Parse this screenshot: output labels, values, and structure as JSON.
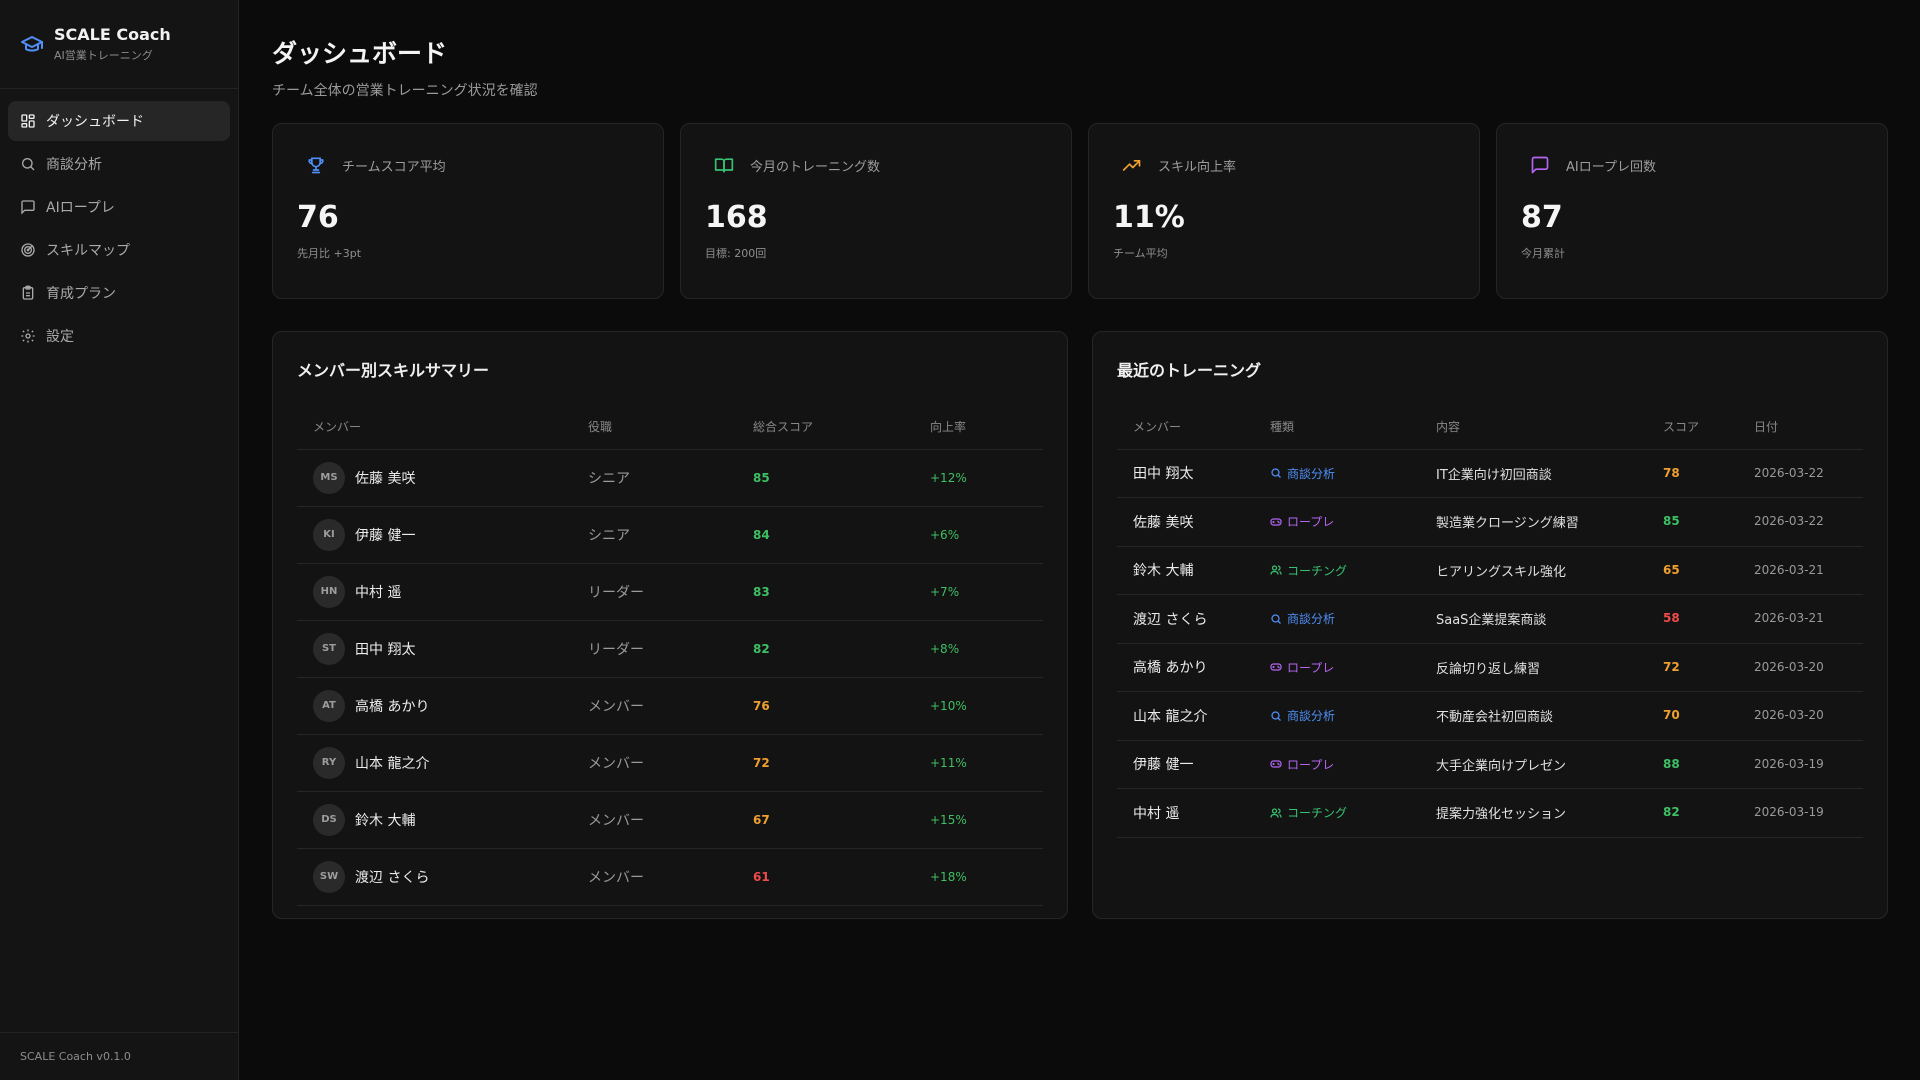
{
  "brand": {
    "title": "SCALE Coach",
    "subtitle": "AI営業トレーニング"
  },
  "nav": [
    {
      "label": "ダッシュボード",
      "icon": "dashboard-icon",
      "active": true
    },
    {
      "label": "商談分析",
      "icon": "search-icon"
    },
    {
      "label": "AIロープレ",
      "icon": "message-icon"
    },
    {
      "label": "スキルマップ",
      "icon": "radar-icon"
    },
    {
      "label": "育成プラン",
      "icon": "clipboard-icon"
    },
    {
      "label": "設定",
      "icon": "gear-icon"
    }
  ],
  "footer": {
    "version": "SCALE Coach v0.1.0"
  },
  "page": {
    "title": "ダッシュボード",
    "subtitle": "チーム全体の営業トレーニング状況を確認"
  },
  "stats": [
    {
      "label": "チームスコア平均",
      "value": "76",
      "note": "先月比 +3pt",
      "icon": "trophy-icon",
      "color": "#4f8ff7"
    },
    {
      "label": "今月のトレーニング数",
      "value": "168",
      "note": "目標: 200回",
      "icon": "book-icon",
      "color": "#38c172"
    },
    {
      "label": "スキル向上率",
      "value": "11%",
      "note": "チーム平均",
      "icon": "trend-up-icon",
      "color": "#f0a030"
    },
    {
      "label": "AIロープレ回数",
      "value": "87",
      "note": "今月累計",
      "icon": "message-icon",
      "color": "#b565f2"
    }
  ],
  "skill_summary": {
    "title": "メンバー別スキルサマリー",
    "headers": [
      "メンバー",
      "役職",
      "総合スコア",
      "向上率"
    ],
    "rows": [
      {
        "initials": "MS",
        "name": "佐藤 美咲",
        "role": "シニア",
        "score": "85",
        "rate": "+12%",
        "score_color": "green"
      },
      {
        "initials": "KI",
        "name": "伊藤 健一",
        "role": "シニア",
        "score": "84",
        "rate": "+6%",
        "score_color": "green"
      },
      {
        "initials": "HN",
        "name": "中村 遥",
        "role": "リーダー",
        "score": "83",
        "rate": "+7%",
        "score_color": "green"
      },
      {
        "initials": "ST",
        "name": "田中 翔太",
        "role": "リーダー",
        "score": "82",
        "rate": "+8%",
        "score_color": "green"
      },
      {
        "initials": "AT",
        "name": "高橋 あかり",
        "role": "メンバー",
        "score": "76",
        "rate": "+10%",
        "score_color": "orange"
      },
      {
        "initials": "RY",
        "name": "山本 龍之介",
        "role": "メンバー",
        "score": "72",
        "rate": "+11%",
        "score_color": "orange"
      },
      {
        "initials": "DS",
        "name": "鈴木 大輔",
        "role": "メンバー",
        "score": "67",
        "rate": "+15%",
        "score_color": "orange"
      },
      {
        "initials": "SW",
        "name": "渡辺 さくら",
        "role": "メンバー",
        "score": "61",
        "rate": "+18%",
        "score_color": "red"
      }
    ]
  },
  "recent_training": {
    "title": "最近のトレーニング",
    "headers": [
      "メンバー",
      "種類",
      "内容",
      "スコア",
      "日付"
    ],
    "rows": [
      {
        "name": "田中 翔太",
        "type": "商談分析",
        "type_kind": "analysis",
        "content": "IT企業向け初回商談",
        "score": "78",
        "score_color": "orange",
        "date": "2026-03-22"
      },
      {
        "name": "佐藤 美咲",
        "type": "ロープレ",
        "type_kind": "roleplay",
        "content": "製造業クロージング練習",
        "score": "85",
        "score_color": "green",
        "date": "2026-03-22"
      },
      {
        "name": "鈴木 大輔",
        "type": "コーチング",
        "type_kind": "coaching",
        "content": "ヒアリングスキル強化",
        "score": "65",
        "score_color": "orange",
        "date": "2026-03-21"
      },
      {
        "name": "渡辺 さくら",
        "type": "商談分析",
        "type_kind": "analysis",
        "content": "SaaS企業提案商談",
        "score": "58",
        "score_color": "red",
        "date": "2026-03-21"
      },
      {
        "name": "高橋 あかり",
        "type": "ロープレ",
        "type_kind": "roleplay",
        "content": "反論切り返し練習",
        "score": "72",
        "score_color": "orange",
        "date": "2026-03-20"
      },
      {
        "name": "山本 龍之介",
        "type": "商談分析",
        "type_kind": "analysis",
        "content": "不動産会社初回商談",
        "score": "70",
        "score_color": "orange",
        "date": "2026-03-20"
      },
      {
        "name": "伊藤 健一",
        "type": "ロープレ",
        "type_kind": "roleplay",
        "content": "大手企業向けプレゼン",
        "score": "88",
        "score_color": "green",
        "date": "2026-03-19"
      },
      {
        "name": "中村 遥",
        "type": "コーチング",
        "type_kind": "coaching",
        "content": "提案力強化セッション",
        "score": "82",
        "score_color": "green",
        "date": "2026-03-19"
      }
    ]
  }
}
